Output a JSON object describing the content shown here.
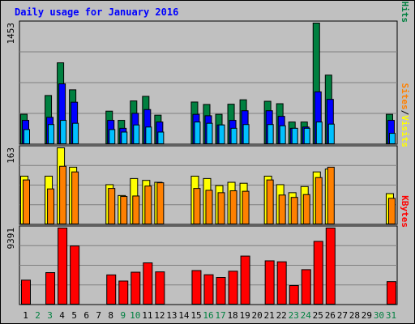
{
  "chart_data": {
    "type": "bar",
    "title": "Daily usage for January 2016",
    "categories": [
      "1",
      "2",
      "3",
      "4",
      "5",
      "6",
      "7",
      "8",
      "9",
      "10",
      "11",
      "12",
      "13",
      "14",
      "15",
      "16",
      "17",
      "18",
      "19",
      "20",
      "21",
      "22",
      "23",
      "24",
      "25",
      "26",
      "27",
      "28",
      "29",
      "30",
      "31"
    ],
    "weekend_days": [
      "2",
      "3",
      "9",
      "10",
      "16",
      "17",
      "23",
      "24",
      "30",
      "31"
    ],
    "panels": [
      {
        "id": "hits",
        "max_label": "1453",
        "ylim": [
          0,
          1453
        ],
        "legend": [
          {
            "label": "Pages",
            "color": "#00c0ff"
          },
          {
            "label": "/",
            "color": "#000000"
          },
          {
            "label": "Files",
            "color": "#0000ff"
          },
          {
            "label": "/",
            "color": "#000000"
          },
          {
            "label": "Hits",
            "color": "#008040"
          }
        ],
        "series": [
          {
            "name": "Hits",
            "color": "#008040",
            "values": [
              363,
              0,
              587,
              978,
              655,
              0,
              0,
              400,
              290,
              522,
              577,
              352,
              0,
              0,
              509,
              480,
              362,
              483,
              536,
              0,
              518,
              489,
              270,
              270,
              1453,
              831,
              0,
              0,
              0,
              0,
              362
            ]
          },
          {
            "name": "Files",
            "color": "#0000ff",
            "values": [
              290,
              0,
              326,
              727,
              507,
              0,
              0,
              290,
              195,
              374,
              419,
              270,
              0,
              0,
              362,
              345,
              235,
              290,
              405,
              0,
              405,
              338,
              195,
              210,
              631,
              541,
              0,
              0,
              0,
              0,
              290
            ]
          },
          {
            "name": "Pages",
            "color": "#00c0ff",
            "values": [
              180,
              0,
              240,
              290,
              255,
              0,
              0,
              180,
              150,
              235,
              210,
              150,
              0,
              0,
              270,
              255,
              235,
              195,
              240,
              0,
              240,
              225,
              195,
              195,
              270,
              245,
              0,
              0,
              0,
              0,
              135
            ]
          }
        ]
      },
      {
        "id": "visits",
        "max_label": "163",
        "ylim": [
          0,
          163
        ],
        "legend": [
          {
            "label": "Sites",
            "color": "#ff8000"
          },
          {
            "label": "/",
            "color": "#000000"
          },
          {
            "label": "Visits",
            "color": "#ffff00"
          }
        ],
        "series": [
          {
            "name": "Visits",
            "color": "#ffff00",
            "values": [
              103,
              0,
              103,
              163,
              122,
              0,
              0,
              85,
              62,
              98,
              94,
              90,
              0,
              0,
              103,
              98,
              83,
              90,
              88,
              0,
              103,
              85,
              68,
              81,
              112,
              118,
              0,
              0,
              0,
              0,
              66
            ]
          },
          {
            "name": "Sites",
            "color": "#ff8000",
            "values": [
              95,
              0,
              76,
              124,
              112,
              0,
              0,
              77,
              60,
              61,
              82,
              89,
              0,
              0,
              77,
              73,
              68,
              72,
              71,
              0,
              95,
              63,
              58,
              64,
              100,
              122,
              0,
              0,
              0,
              0,
              56
            ]
          }
        ]
      },
      {
        "id": "kbytes",
        "max_label": "9391",
        "ylim": [
          0,
          9391
        ],
        "legend": [
          {
            "label": "KBytes",
            "color": "#ff0000"
          }
        ],
        "series": [
          {
            "name": "KBytes",
            "color": "#ff0000",
            "values": [
              3030,
              0,
              3950,
              9391,
              7200,
              0,
              0,
              3670,
              2920,
              4000,
              5140,
              4040,
              0,
              0,
              4200,
              3690,
              3360,
              4120,
              5970,
              0,
              5390,
              5270,
              2370,
              4310,
              7760,
              9391,
              0,
              0,
              0,
              0,
              2850
            ]
          }
        ]
      }
    ]
  }
}
